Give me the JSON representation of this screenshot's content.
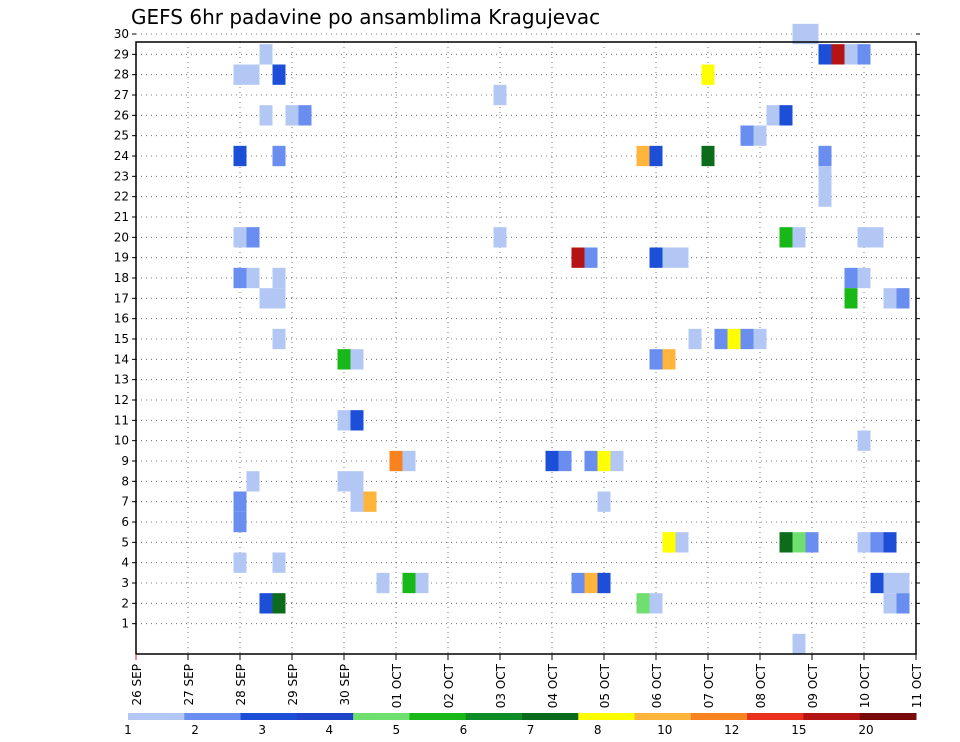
{
  "chart_data": {
    "type": "heatmap",
    "title": "GEFS 6hr padavine po ansamblima Kragujevac",
    "xlabel": "",
    "ylabel": "",
    "x_ticks": [
      "26 SEP",
      "27 SEP",
      "28 SEP",
      "29 SEP",
      "30 SEP",
      "01 OCT",
      "02 OCT",
      "03 OCT",
      "04 OCT",
      "05 OCT",
      "06 OCT",
      "07 OCT",
      "08 OCT",
      "09 OCT",
      "10 OCT",
      "11 OCT"
    ],
    "x_range": [
      "26 SEP 00Z",
      "11 OCT 00Z"
    ],
    "x_step": "6hr",
    "y_ticks": [
      1,
      2,
      3,
      4,
      5,
      6,
      7,
      8,
      9,
      10,
      11,
      12,
      13,
      14,
      15,
      16,
      17,
      18,
      19,
      20,
      21,
      22,
      23,
      24,
      25,
      26,
      27,
      28,
      29,
      30
    ],
    "ylim": [
      0,
      30
    ],
    "grid": true,
    "colorbar": {
      "labels": [
        "1",
        "2",
        "3",
        "4",
        "5",
        "6",
        "7",
        "8",
        "10",
        "12",
        "15",
        "20"
      ],
      "colors": [
        "#b3c7f5",
        "#6a8ef0",
        "#1d4ed8",
        "#1f44c9",
        "#6fe06f",
        "#18b818",
        "#0d8c28",
        "#0a6b1c",
        "#ffff00",
        "#ffb43c",
        "#f7821e",
        "#e8321e",
        "#b41414",
        "#780a0a"
      ]
    },
    "note_units": "mm per 6hr",
    "cells": [
      {
        "member": 30,
        "time": "08 OCT 18Z",
        "value": 1
      },
      {
        "member": 30,
        "time": "09 OCT 00Z",
        "value": 1
      },
      {
        "member": 29,
        "time": "28 SEP 12Z",
        "value": 1
      },
      {
        "member": 29,
        "time": "09 OCT 06Z",
        "value": 3
      },
      {
        "member": 29,
        "time": "09 OCT 12Z",
        "value": 15
      },
      {
        "member": 29,
        "time": "09 OCT 18Z",
        "value": 1
      },
      {
        "member": 29,
        "time": "10 OCT 00Z",
        "value": 2
      },
      {
        "member": 28,
        "time": "28 SEP 00Z",
        "value": 1
      },
      {
        "member": 28,
        "time": "28 SEP 06Z",
        "value": 1
      },
      {
        "member": 28,
        "time": "28 SEP 18Z",
        "value": 3
      },
      {
        "member": 28,
        "time": "07 OCT 00Z",
        "value": 8
      },
      {
        "member": 27,
        "time": "03 OCT 00Z",
        "value": 1
      },
      {
        "member": 26,
        "time": "28 SEP 12Z",
        "value": 1
      },
      {
        "member": 26,
        "time": "29 SEP 00Z",
        "value": 1
      },
      {
        "member": 26,
        "time": "29 SEP 06Z",
        "value": 2
      },
      {
        "member": 26,
        "time": "08 OCT 06Z",
        "value": 1
      },
      {
        "member": 26,
        "time": "08 OCT 12Z",
        "value": 3
      },
      {
        "member": 25,
        "time": "07 OCT 18Z",
        "value": 2
      },
      {
        "member": 25,
        "time": "08 OCT 00Z",
        "value": 1
      },
      {
        "member": 24,
        "time": "28 SEP 00Z",
        "value": 3
      },
      {
        "member": 24,
        "time": "28 SEP 18Z",
        "value": 2
      },
      {
        "member": 24,
        "time": "05 OCT 18Z",
        "value": 10
      },
      {
        "member": 24,
        "time": "06 OCT 00Z",
        "value": 3
      },
      {
        "member": 24,
        "time": "07 OCT 00Z",
        "value": 6
      },
      {
        "member": 24,
        "time": "09 OCT 06Z",
        "value": 2
      },
      {
        "member": 23,
        "time": "09 OCT 06Z",
        "value": 1
      },
      {
        "member": 22,
        "time": "09 OCT 06Z",
        "value": 1
      },
      {
        "member": 20,
        "time": "28 SEP 00Z",
        "value": 1
      },
      {
        "member": 20,
        "time": "28 SEP 06Z",
        "value": 2
      },
      {
        "member": 20,
        "time": "03 OCT 00Z",
        "value": 1
      },
      {
        "member": 20,
        "time": "08 OCT 12Z",
        "value": 5
      },
      {
        "member": 20,
        "time": "08 OCT 18Z",
        "value": 1
      },
      {
        "member": 20,
        "time": "10 OCT 00Z",
        "value": 1
      },
      {
        "member": 20,
        "time": "10 OCT 06Z",
        "value": 1
      },
      {
        "member": 19,
        "time": "04 OCT 12Z",
        "value": 15
      },
      {
        "member": 19,
        "time": "04 OCT 18Z",
        "value": 2
      },
      {
        "member": 19,
        "time": "06 OCT 00Z",
        "value": 3
      },
      {
        "member": 19,
        "time": "06 OCT 06Z",
        "value": 1
      },
      {
        "member": 19,
        "time": "06 OCT 12Z",
        "value": 1
      },
      {
        "member": 18,
        "time": "28 SEP 00Z",
        "value": 2
      },
      {
        "member": 18,
        "time": "28 SEP 06Z",
        "value": 1
      },
      {
        "member": 18,
        "time": "28 SEP 18Z",
        "value": 1
      },
      {
        "member": 18,
        "time": "09 OCT 18Z",
        "value": 2
      },
      {
        "member": 18,
        "time": "10 OCT 00Z",
        "value": 1
      },
      {
        "member": 17,
        "time": "28 SEP 12Z",
        "value": 1
      },
      {
        "member": 17,
        "time": "28 SEP 18Z",
        "value": 1
      },
      {
        "member": 17,
        "time": "09 OCT 18Z",
        "value": 5
      },
      {
        "member": 17,
        "time": "10 OCT 12Z",
        "value": 1
      },
      {
        "member": 17,
        "time": "10 OCT 18Z",
        "value": 2
      },
      {
        "member": 15,
        "time": "28 SEP 18Z",
        "value": 1
      },
      {
        "member": 15,
        "time": "06 OCT 18Z",
        "value": 1
      },
      {
        "member": 15,
        "time": "07 OCT 06Z",
        "value": 2
      },
      {
        "member": 15,
        "time": "07 OCT 12Z",
        "value": 8
      },
      {
        "member": 15,
        "time": "07 OCT 18Z",
        "value": 2
      },
      {
        "member": 15,
        "time": "08 OCT 00Z",
        "value": 1
      },
      {
        "member": 14,
        "time": "30 SEP 00Z",
        "value": 5
      },
      {
        "member": 14,
        "time": "30 SEP 06Z",
        "value": 1
      },
      {
        "member": 14,
        "time": "06 OCT 00Z",
        "value": 2
      },
      {
        "member": 14,
        "time": "06 OCT 06Z",
        "value": 10
      },
      {
        "member": 11,
        "time": "30 SEP 00Z",
        "value": 1
      },
      {
        "member": 11,
        "time": "30 SEP 06Z",
        "value": 3
      },
      {
        "member": 10,
        "time": "10 OCT 00Z",
        "value": 1
      },
      {
        "member": 9,
        "time": "01 OCT 00Z",
        "value": 12
      },
      {
        "member": 9,
        "time": "01 OCT 06Z",
        "value": 1
      },
      {
        "member": 9,
        "time": "04 OCT 00Z",
        "value": 3
      },
      {
        "member": 9,
        "time": "04 OCT 06Z",
        "value": 2
      },
      {
        "member": 9,
        "time": "04 OCT 18Z",
        "value": 2
      },
      {
        "member": 9,
        "time": "05 OCT 00Z",
        "value": 8
      },
      {
        "member": 9,
        "time": "05 OCT 06Z",
        "value": 1
      },
      {
        "member": 8,
        "time": "28 SEP 06Z",
        "value": 1
      },
      {
        "member": 8,
        "time": "30 SEP 00Z",
        "value": 1
      },
      {
        "member": 8,
        "time": "30 SEP 06Z",
        "value": 1
      },
      {
        "member": 7,
        "time": "28 SEP 00Z",
        "value": 2
      },
      {
        "member": 7,
        "time": "30 SEP 06Z",
        "value": 1
      },
      {
        "member": 7,
        "time": "30 SEP 12Z",
        "value": 10
      },
      {
        "member": 7,
        "time": "05 OCT 00Z",
        "value": 1
      },
      {
        "member": 6,
        "time": "28 SEP 00Z",
        "value": 2
      },
      {
        "member": 5,
        "time": "06 OCT 06Z",
        "value": 8
      },
      {
        "member": 5,
        "time": "06 OCT 12Z",
        "value": 1
      },
      {
        "member": 5,
        "time": "08 OCT 12Z",
        "value": 6
      },
      {
        "member": 5,
        "time": "08 OCT 18Z",
        "value": 4
      },
      {
        "member": 5,
        "time": "09 OCT 00Z",
        "value": 2
      },
      {
        "member": 5,
        "time": "10 OCT 00Z",
        "value": 1
      },
      {
        "member": 5,
        "time": "10 OCT 06Z",
        "value": 2
      },
      {
        "member": 5,
        "time": "10 OCT 12Z",
        "value": 3
      },
      {
        "member": 4,
        "time": "28 SEP 00Z",
        "value": 1
      },
      {
        "member": 4,
        "time": "28 SEP 18Z",
        "value": 1
      },
      {
        "member": 3,
        "time": "30 SEP 18Z",
        "value": 1
      },
      {
        "member": 3,
        "time": "01 OCT 06Z",
        "value": 5
      },
      {
        "member": 3,
        "time": "01 OCT 12Z",
        "value": 1
      },
      {
        "member": 3,
        "time": "04 OCT 12Z",
        "value": 2
      },
      {
        "member": 3,
        "time": "04 OCT 18Z",
        "value": 10
      },
      {
        "member": 3,
        "time": "05 OCT 00Z",
        "value": 3
      },
      {
        "member": 3,
        "time": "10 OCT 06Z",
        "value": 3
      },
      {
        "member": 3,
        "time": "10 OCT 12Z",
        "value": 1
      },
      {
        "member": 3,
        "time": "10 OCT 18Z",
        "value": 1
      },
      {
        "member": 2,
        "time": "28 SEP 12Z",
        "value": 3
      },
      {
        "member": 2,
        "time": "28 SEP 18Z",
        "value": 6
      },
      {
        "member": 2,
        "time": "05 OCT 18Z",
        "value": 4
      },
      {
        "member": 2,
        "time": "06 OCT 00Z",
        "value": 1
      },
      {
        "member": 2,
        "time": "10 OCT 12Z",
        "value": 1
      },
      {
        "member": 2,
        "time": "10 OCT 18Z",
        "value": 2
      },
      {
        "member": 0,
        "time": "08 OCT 18Z",
        "value": 1
      }
    ]
  }
}
